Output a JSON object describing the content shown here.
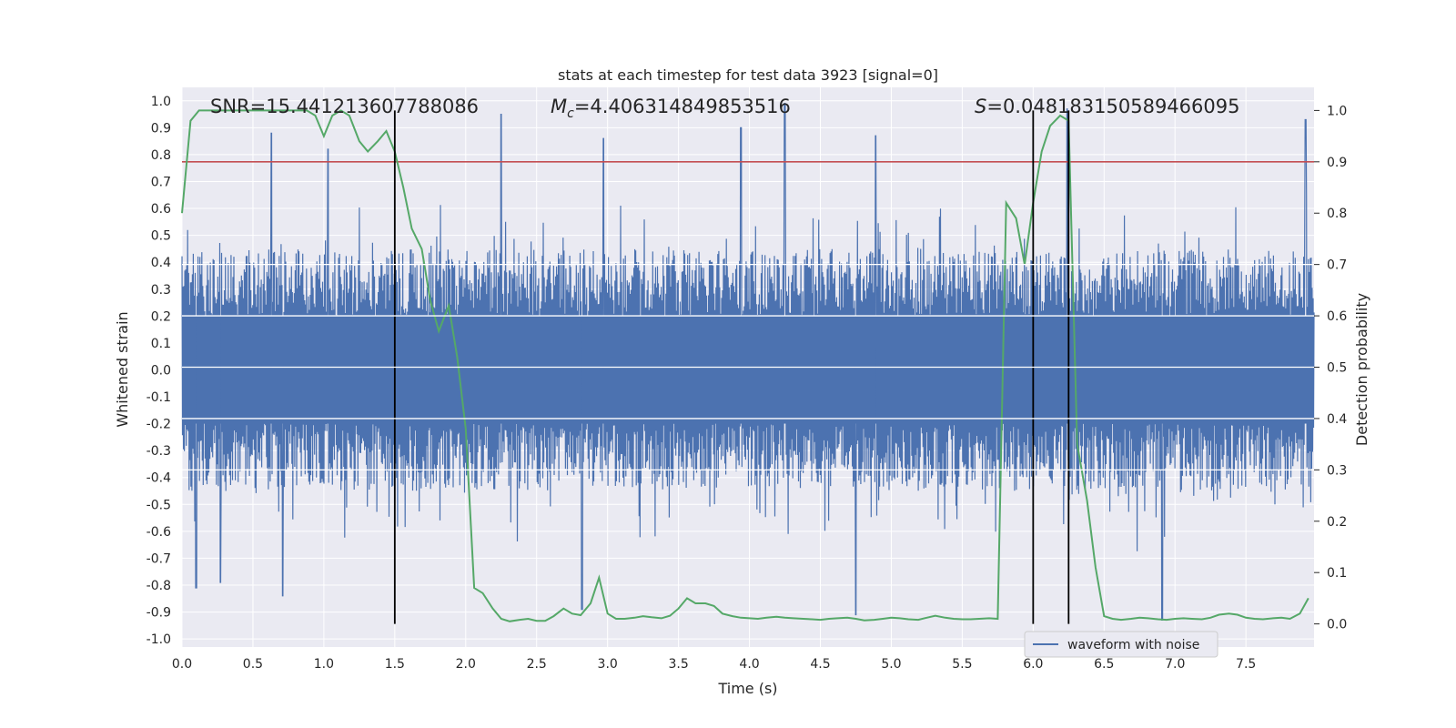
{
  "colors": {
    "background": "#eaeaf2",
    "grid": "#ffffff",
    "waveform": "#4c72b0",
    "probability": "#55a868",
    "threshold": "#c44e52",
    "markers": "#000000",
    "text": "#262626"
  },
  "chart_data": {
    "type": "line",
    "title": "stats at each timestep for test data 3923 [signal=0]",
    "xlabel": "Time (s)",
    "ylabel": "Whitened strain",
    "y2label": "Detection probability",
    "xlim": [
      0.0,
      7.98
    ],
    "ylim": [
      -1.03,
      1.05
    ],
    "y2lim": [
      -0.045,
      1.045
    ],
    "xticks": [
      "0.0",
      "0.5",
      "1.0",
      "1.5",
      "2.0",
      "2.5",
      "3.0",
      "3.5",
      "4.0",
      "4.5",
      "5.0",
      "5.5",
      "6.0",
      "6.5",
      "7.0",
      "7.5"
    ],
    "yticks": [
      "1.0",
      "0.9",
      "0.8",
      "0.7",
      "0.6",
      "0.5",
      "0.4",
      "0.3",
      "0.2",
      "0.1",
      "0.0",
      "-0.1",
      "-0.2",
      "-0.3",
      "-0.4",
      "-0.5",
      "-0.6",
      "-0.7",
      "-0.8",
      "-0.9",
      "-1.0"
    ],
    "y2ticks": [
      "1.0",
      "0.9",
      "0.8",
      "0.7",
      "0.6",
      "0.5",
      "0.4",
      "0.3",
      "0.2",
      "0.1",
      "0.0"
    ],
    "grid": true,
    "legend": {
      "entries": [
        "waveform with noise"
      ],
      "placement": "lower-center-right"
    },
    "annotations": {
      "snr_text": "SNR=15.441213607788086",
      "mc_symbol": "M",
      "mc_subscript": "c",
      "mc_value": "=4.406314849853516",
      "s_symbol": "S",
      "s_value": "=0.048183150589466095"
    },
    "vertical_markers_s": [
      1.5,
      6.0,
      6.25
    ],
    "threshold_probability": 0.9,
    "waveform": {
      "name": "waveform with noise",
      "description_envelope": "dense whitened strain noise between about -0.9 and 0.99",
      "peaks": [
        {
          "x": 0.63,
          "y": 0.88
        },
        {
          "x": 1.03,
          "y": 0.82
        },
        {
          "x": 2.25,
          "y": 0.95
        },
        {
          "x": 2.97,
          "y": 0.86
        },
        {
          "x": 3.94,
          "y": 0.9
        },
        {
          "x": 4.25,
          "y": 0.99
        },
        {
          "x": 4.89,
          "y": 0.87
        },
        {
          "x": 6.24,
          "y": 0.97
        },
        {
          "x": 7.92,
          "y": 0.93
        }
      ],
      "troughs": [
        {
          "x": 0.1,
          "y": -0.81
        },
        {
          "x": 0.27,
          "y": -0.79
        },
        {
          "x": 0.71,
          "y": -0.84
        },
        {
          "x": 2.82,
          "y": -0.89
        },
        {
          "x": 4.75,
          "y": -0.91
        },
        {
          "x": 6.91,
          "y": -0.93
        }
      ]
    },
    "probability_series": {
      "x": [
        0.0,
        0.06,
        0.12,
        0.2,
        0.3,
        0.4,
        0.5,
        0.6,
        0.7,
        0.8,
        0.88,
        0.94,
        1.0,
        1.06,
        1.12,
        1.18,
        1.25,
        1.31,
        1.38,
        1.44,
        1.5,
        1.56,
        1.62,
        1.69,
        1.75,
        1.81,
        1.88,
        1.94,
        2.0,
        2.06,
        2.12,
        2.19,
        2.25,
        2.31,
        2.38,
        2.44,
        2.5,
        2.56,
        2.62,
        2.69,
        2.75,
        2.81,
        2.88,
        2.94,
        3.0,
        3.06,
        3.12,
        3.19,
        3.25,
        3.31,
        3.38,
        3.44,
        3.5,
        3.56,
        3.62,
        3.69,
        3.75,
        3.81,
        3.88,
        3.94,
        4.0,
        4.06,
        4.12,
        4.19,
        4.25,
        4.31,
        4.38,
        4.44,
        4.5,
        4.56,
        4.62,
        4.69,
        4.75,
        4.81,
        4.88,
        4.94,
        5.0,
        5.06,
        5.12,
        5.19,
        5.25,
        5.31,
        5.38,
        5.44,
        5.5,
        5.56,
        5.62,
        5.69,
        5.75,
        5.81,
        5.88,
        5.94,
        6.0,
        6.06,
        6.12,
        6.19,
        6.25,
        6.31,
        6.38,
        6.44,
        6.5,
        6.56,
        6.62,
        6.69,
        6.75,
        6.81,
        6.88,
        6.94,
        7.0,
        7.06,
        7.12,
        7.19,
        7.25,
        7.31,
        7.38,
        7.44,
        7.5,
        7.56,
        7.62,
        7.69,
        7.75,
        7.81,
        7.88,
        7.94
      ],
      "y": [
        0.8,
        0.98,
        1.0,
        1.0,
        1.0,
        1.0,
        1.0,
        1.0,
        1.0,
        1.0,
        1.0,
        0.99,
        0.95,
        0.99,
        1.0,
        0.99,
        0.94,
        0.92,
        0.94,
        0.96,
        0.92,
        0.85,
        0.77,
        0.73,
        0.63,
        0.57,
        0.62,
        0.52,
        0.38,
        0.07,
        0.06,
        0.03,
        0.01,
        0.005,
        0.008,
        0.01,
        0.006,
        0.006,
        0.015,
        0.03,
        0.02,
        0.017,
        0.04,
        0.09,
        0.02,
        0.01,
        0.01,
        0.012,
        0.015,
        0.013,
        0.011,
        0.016,
        0.03,
        0.05,
        0.04,
        0.04,
        0.035,
        0.02,
        0.015,
        0.012,
        0.011,
        0.01,
        0.012,
        0.014,
        0.012,
        0.011,
        0.01,
        0.009,
        0.008,
        0.01,
        0.011,
        0.012,
        0.01,
        0.007,
        0.008,
        0.01,
        0.012,
        0.011,
        0.009,
        0.008,
        0.012,
        0.016,
        0.012,
        0.01,
        0.009,
        0.009,
        0.01,
        0.011,
        0.01,
        0.82,
        0.79,
        0.7,
        0.82,
        0.92,
        0.97,
        0.99,
        0.98,
        0.35,
        0.24,
        0.11,
        0.015,
        0.01,
        0.008,
        0.01,
        0.012,
        0.011,
        0.009,
        0.008,
        0.01,
        0.011,
        0.01,
        0.009,
        0.012,
        0.018,
        0.02,
        0.018,
        0.012,
        0.01,
        0.009,
        0.011,
        0.012,
        0.01,
        0.02,
        0.05
      ]
    }
  }
}
